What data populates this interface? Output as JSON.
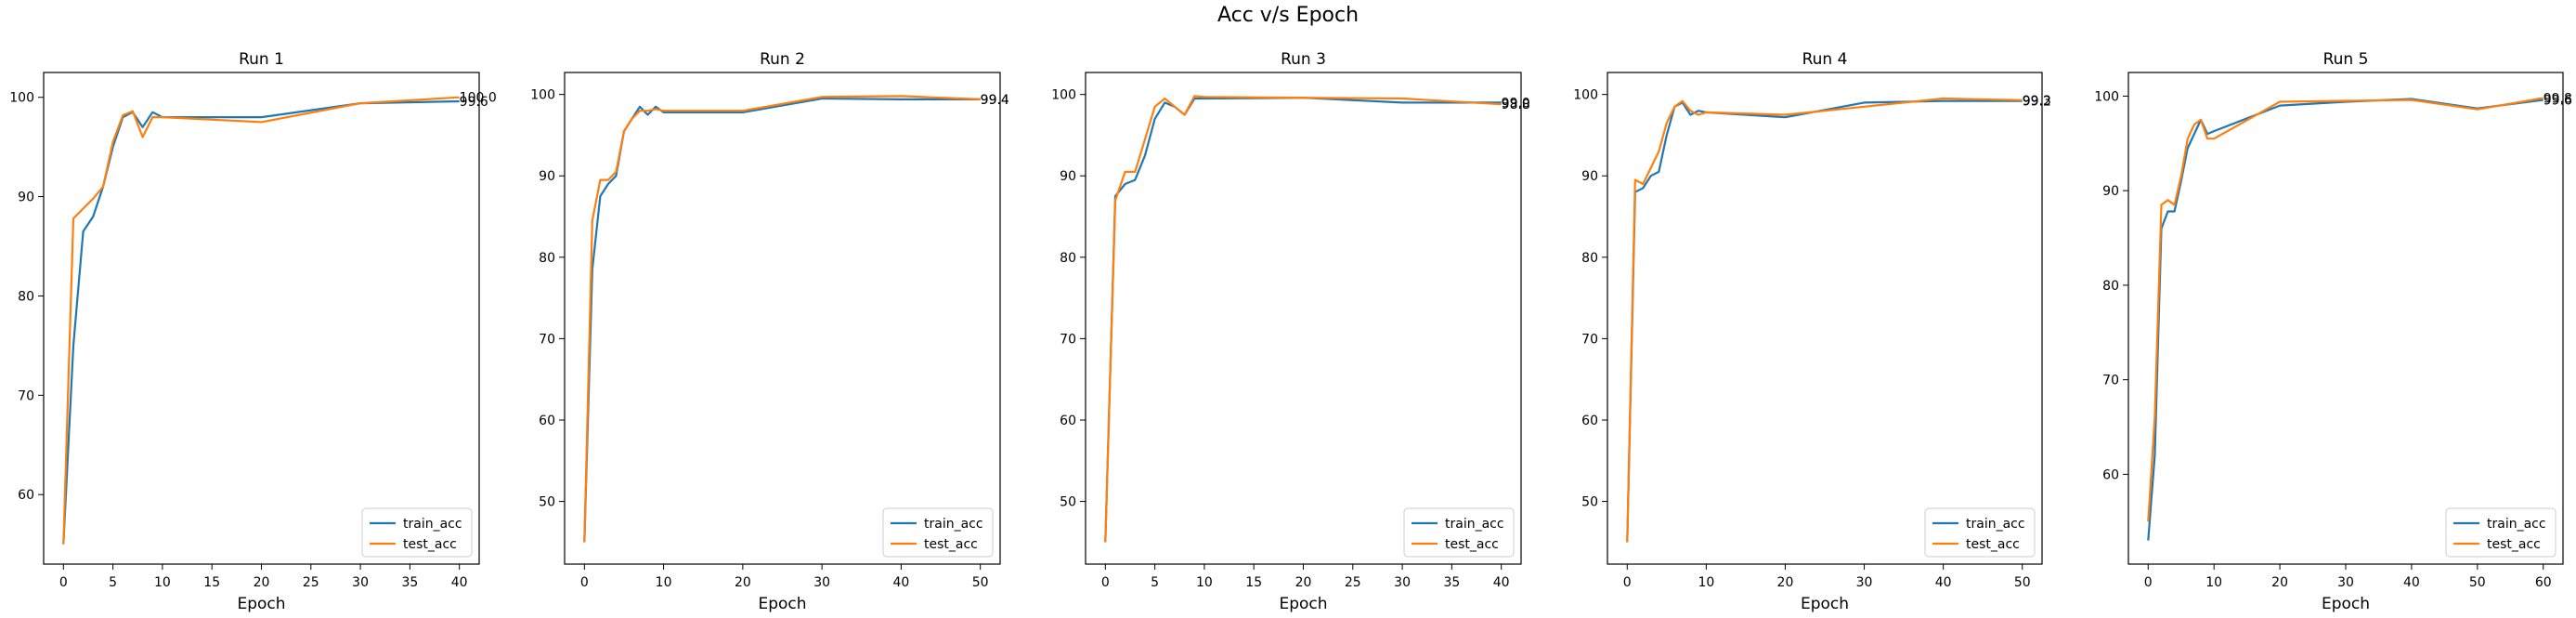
{
  "figure": {
    "suptitle": "Acc v/s Epoch"
  },
  "colors": {
    "train": "#1f77b4",
    "test": "#ff7f0e",
    "axes": "#000000"
  },
  "chart_data": [
    {
      "type": "line",
      "title": "Run 1",
      "xlabel": "Epoch",
      "ylabel": "",
      "xlim": [
        -2,
        42
      ],
      "ylim": [
        53.0,
        102.5
      ],
      "xticks": [
        0,
        5,
        10,
        15,
        20,
        25,
        30,
        35,
        40
      ],
      "yticks": [
        60,
        70,
        80,
        90,
        100
      ],
      "legend": "lower-right",
      "series": [
        {
          "name": "train_acc",
          "x": [
            0,
            1,
            2,
            3,
            4,
            5,
            6,
            7,
            8,
            9,
            10,
            20,
            30,
            40
          ],
          "y": [
            55.0,
            75.0,
            86.5,
            88.0,
            91.0,
            95.0,
            98.0,
            98.5,
            97.0,
            98.5,
            98.0,
            98.0,
            99.4,
            99.6
          ]
        },
        {
          "name": "test_acc",
          "x": [
            0,
            1,
            2,
            3,
            4,
            5,
            6,
            7,
            8,
            9,
            10,
            20,
            30,
            40
          ],
          "y": [
            55.0,
            87.8,
            88.8,
            89.8,
            91.0,
            95.5,
            98.2,
            98.6,
            96.0,
            98.0,
            98.0,
            97.5,
            99.4,
            100.0
          ]
        }
      ],
      "end_labels": [
        "99.6",
        "100.0"
      ]
    },
    {
      "type": "line",
      "title": "Run 2",
      "xlabel": "Epoch",
      "ylabel": "",
      "xlim": [
        -2.5,
        52.5
      ],
      "ylim": [
        42.3,
        102.7
      ],
      "xticks": [
        0,
        10,
        20,
        30,
        40,
        50
      ],
      "yticks": [
        50,
        60,
        70,
        80,
        90,
        100
      ],
      "legend": "lower-right",
      "series": [
        {
          "name": "train_acc",
          "x": [
            0,
            1,
            2,
            3,
            4,
            5,
            6,
            7,
            8,
            9,
            10,
            20,
            30,
            40,
            50
          ],
          "y": [
            45.0,
            78.5,
            87.5,
            89.0,
            90.0,
            95.5,
            97.0,
            98.5,
            97.5,
            98.5,
            97.8,
            97.8,
            99.5,
            99.4,
            99.4
          ]
        },
        {
          "name": "test_acc",
          "x": [
            0,
            1,
            2,
            3,
            4,
            5,
            6,
            7,
            8,
            9,
            10,
            20,
            30,
            40,
            50
          ],
          "y": [
            45.0,
            84.5,
            89.5,
            89.5,
            90.5,
            95.5,
            97.0,
            98.0,
            98.0,
            98.2,
            98.0,
            98.0,
            99.7,
            99.8,
            99.4
          ]
        }
      ],
      "end_labels": [
        "99.4",
        "99.4"
      ]
    },
    {
      "type": "line",
      "title": "Run 3",
      "xlabel": "Epoch",
      "ylabel": "",
      "xlim": [
        -2,
        42
      ],
      "ylim": [
        42.3,
        102.7
      ],
      "xticks": [
        0,
        5,
        10,
        15,
        20,
        25,
        30,
        35,
        40
      ],
      "yticks": [
        50,
        60,
        70,
        80,
        90,
        100
      ],
      "legend": "lower-right",
      "series": [
        {
          "name": "train_acc",
          "x": [
            0,
            1,
            2,
            3,
            4,
            5,
            6,
            7,
            8,
            9,
            10,
            20,
            30,
            40
          ],
          "y": [
            45.0,
            87.5,
            89.0,
            89.5,
            92.5,
            97.0,
            99.0,
            98.5,
            97.5,
            99.5,
            99.5,
            99.6,
            99.0,
            99.0
          ]
        },
        {
          "name": "test_acc",
          "x": [
            0,
            1,
            2,
            3,
            4,
            5,
            6,
            7,
            8,
            9,
            10,
            20,
            30,
            40
          ],
          "y": [
            45.0,
            87.0,
            90.5,
            90.5,
            94.5,
            98.5,
            99.5,
            98.5,
            97.5,
            99.8,
            99.7,
            99.6,
            99.5,
            98.8
          ]
        }
      ],
      "end_labels": [
        "99.0",
        "98.8"
      ]
    },
    {
      "type": "line",
      "title": "Run 4",
      "xlabel": "Epoch",
      "ylabel": "",
      "xlim": [
        -2.5,
        52.5
      ],
      "ylim": [
        42.3,
        102.7
      ],
      "xticks": [
        0,
        10,
        20,
        30,
        40,
        50
      ],
      "yticks": [
        50,
        60,
        70,
        80,
        90,
        100
      ],
      "legend": "lower-right",
      "series": [
        {
          "name": "train_acc",
          "x": [
            0,
            1,
            2,
            3,
            4,
            5,
            6,
            7,
            8,
            9,
            10,
            20,
            30,
            40,
            50
          ],
          "y": [
            45.0,
            88.0,
            88.5,
            90.0,
            90.5,
            95.0,
            98.5,
            99.0,
            97.5,
            98.0,
            97.8,
            97.2,
            99.0,
            99.2,
            99.2
          ]
        },
        {
          "name": "test_acc",
          "x": [
            0,
            1,
            2,
            3,
            4,
            5,
            6,
            7,
            8,
            9,
            10,
            20,
            30,
            40,
            50
          ],
          "y": [
            45.0,
            89.5,
            89.0,
            91.0,
            93.0,
            96.5,
            98.5,
            99.2,
            98.0,
            97.5,
            97.8,
            97.5,
            98.5,
            99.5,
            99.3
          ]
        }
      ],
      "end_labels": [
        "99.2",
        "99.3"
      ]
    },
    {
      "type": "line",
      "title": "Run 5",
      "xlabel": "Epoch",
      "ylabel": "",
      "xlim": [
        -3,
        63
      ],
      "ylim": [
        50.5,
        102.5
      ],
      "xticks": [
        0,
        10,
        20,
        30,
        40,
        50,
        60
      ],
      "yticks": [
        60,
        70,
        80,
        90,
        100
      ],
      "legend": "lower-right",
      "series": [
        {
          "name": "train_acc",
          "x": [
            0,
            1,
            2,
            3,
            4,
            5,
            6,
            7,
            8,
            9,
            10,
            20,
            30,
            40,
            50,
            60
          ],
          "y": [
            53.0,
            62.0,
            86.0,
            87.8,
            87.8,
            91.0,
            94.5,
            96.0,
            97.5,
            96.0,
            96.3,
            99.0,
            99.4,
            99.7,
            98.7,
            99.6
          ]
        },
        {
          "name": "test_acc",
          "x": [
            0,
            1,
            2,
            3,
            4,
            5,
            6,
            7,
            8,
            9,
            10,
            20,
            30,
            40,
            50,
            60
          ],
          "y": [
            55.0,
            66.0,
            88.5,
            89.0,
            88.5,
            91.5,
            95.5,
            97.0,
            97.5,
            95.5,
            95.5,
            99.4,
            99.5,
            99.6,
            98.6,
            99.8
          ]
        }
      ],
      "end_labels": [
        "99.6",
        "99.8"
      ]
    }
  ]
}
